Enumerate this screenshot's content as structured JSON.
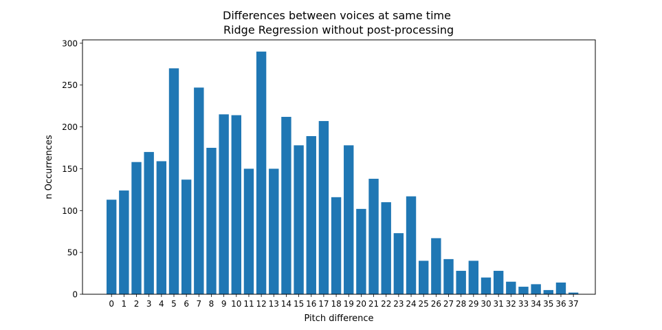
{
  "chart_data": {
    "type": "bar",
    "title_line1": "Differences between voices at same time",
    "title_line2": " Ridge Regression without post-processing",
    "xlabel": "Pitch difference",
    "ylabel": "n Occurrences",
    "categories": [
      "0",
      "1",
      "2",
      "3",
      "4",
      "5",
      "6",
      "7",
      "8",
      "9",
      "10",
      "11",
      "12",
      "13",
      "14",
      "15",
      "16",
      "17",
      "18",
      "19",
      "20",
      "21",
      "22",
      "23",
      "24",
      "25",
      "26",
      "27",
      "28",
      "29",
      "30",
      "31",
      "32",
      "33",
      "34",
      "35",
      "36",
      "37"
    ],
    "values": [
      113,
      124,
      158,
      170,
      159,
      270,
      137,
      247,
      175,
      215,
      214,
      150,
      290,
      150,
      212,
      178,
      189,
      207,
      116,
      178,
      102,
      138,
      110,
      73,
      117,
      40,
      67,
      42,
      28,
      40,
      20,
      28,
      15,
      9,
      12,
      5,
      14,
      2
    ],
    "yticks": [
      0,
      50,
      100,
      150,
      200,
      250,
      300
    ],
    "ylim": [
      0,
      304
    ],
    "bar_color": "#1f77b4",
    "grid": false,
    "legend": "none"
  }
}
